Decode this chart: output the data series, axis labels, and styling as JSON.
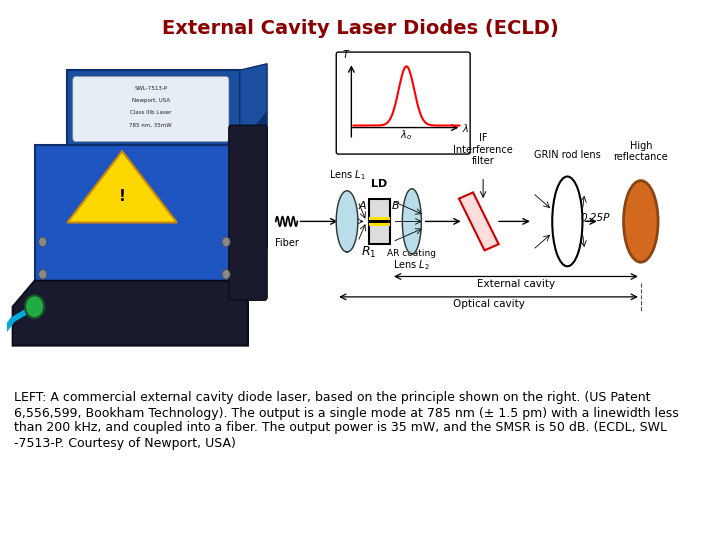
{
  "title": "External Cavity Laser Diodes (ECLD)",
  "title_color": "#8B0000",
  "title_fontsize": 14,
  "title_fontweight": "bold",
  "bg_color": "#FFFFFF",
  "caption_line1": "LEFT: A commercial external cavity diode laser, based on the principle shown on the right. (US Patent",
  "caption_line2": "6,556,599, Bookham Technology). The output is a single mode at 785 nm (± 1.5 pm) with a linewidth less",
  "caption_line3": "than 200 kHz, and coupled into a fiber. The output power is 35 mW, and the SMSR is 50 dB. (ECDL, SWL",
  "caption_line4": "-7513-P. Courtesy of Newport, USA)",
  "caption_fontsize": 9,
  "caption_color": "#000000"
}
